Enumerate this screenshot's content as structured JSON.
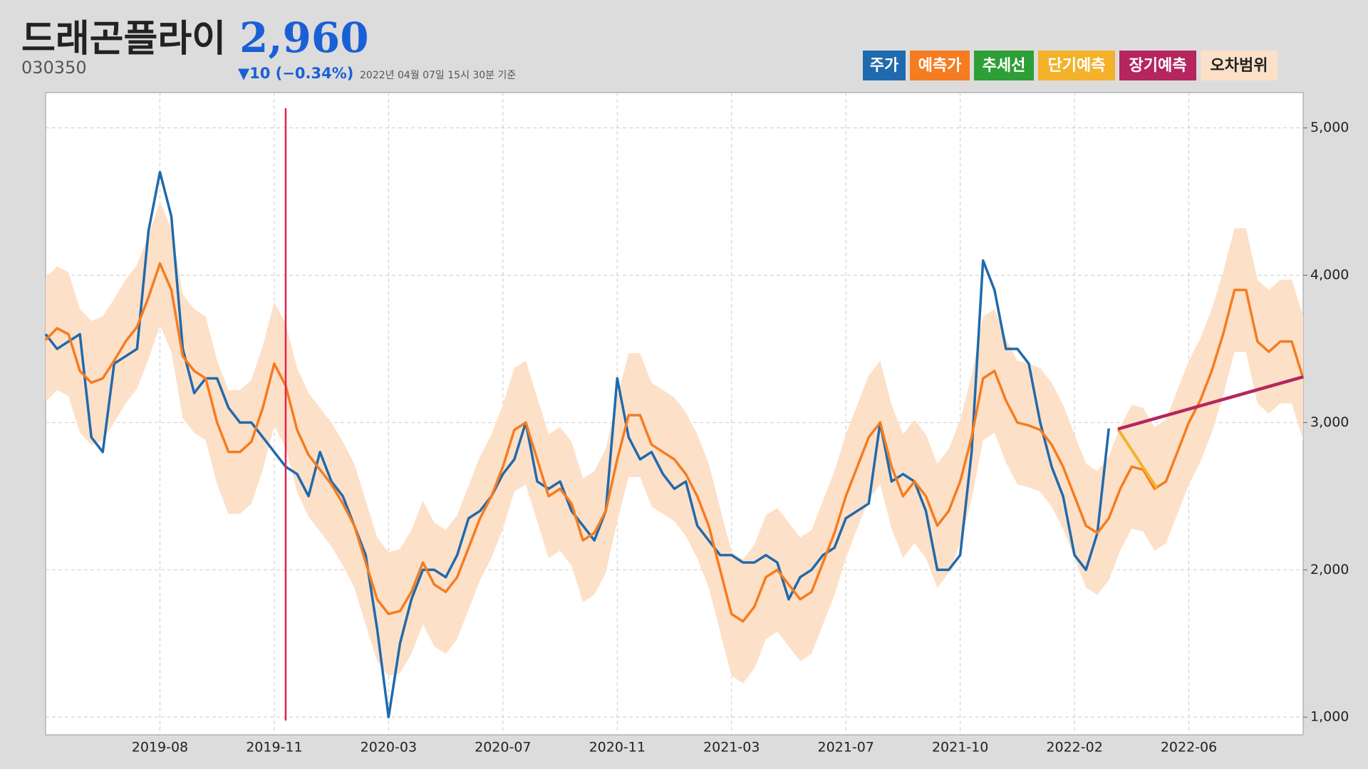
{
  "header": {
    "title": "드래곤플라이",
    "price": "2,960",
    "code": "030350",
    "change": "▼10 (−0.34%)",
    "timestamp": "2022년 04월 07일 15시 30분 기준"
  },
  "chart_data": {
    "type": "line",
    "x": [
      0,
      1,
      2,
      3,
      4,
      5,
      6,
      7,
      8,
      9,
      10,
      11,
      12,
      13,
      14,
      15,
      16,
      17,
      18,
      19,
      20,
      21,
      22,
      23,
      24,
      25,
      26,
      27,
      28,
      29,
      30,
      31,
      32,
      33,
      34,
      35,
      36,
      37,
      38,
      39,
      40,
      41,
      42,
      43,
      44,
      45,
      46,
      47,
      48,
      49,
      50,
      51,
      52,
      53,
      54,
      55,
      56,
      57,
      58,
      59,
      60,
      61,
      62,
      63,
      64,
      65,
      66,
      67,
      68,
      69,
      70,
      71,
      72,
      73,
      74,
      75,
      76,
      77,
      78,
      79,
      80,
      81,
      82,
      83,
      84,
      85,
      86,
      87,
      88,
      89,
      90,
      91,
      92,
      93,
      94,
      95,
      96,
      97,
      98,
      99,
      100,
      101,
      102,
      103,
      104,
      105,
      106,
      107,
      108,
      109,
      110
    ],
    "xlim": [
      0,
      110
    ],
    "xticks": [
      {
        "value": 10,
        "label": "2019-08"
      },
      {
        "value": 20,
        "label": "2019-11"
      },
      {
        "value": 30,
        "label": "2020-03"
      },
      {
        "value": 40,
        "label": "2020-07"
      },
      {
        "value": 50,
        "label": "2020-11"
      },
      {
        "value": 60,
        "label": "2021-03"
      },
      {
        "value": 70,
        "label": "2021-07"
      },
      {
        "value": 80,
        "label": "2021-10"
      },
      {
        "value": 90,
        "label": "2022-02"
      },
      {
        "value": 100,
        "label": "2022-06"
      }
    ],
    "ylim": [
      880,
      5240
    ],
    "yticks": [
      {
        "value": 1000,
        "label": "1,000"
      },
      {
        "value": 2000,
        "label": "2,000"
      },
      {
        "value": 3000,
        "label": "3,000"
      },
      {
        "value": 4000,
        "label": "4,000"
      },
      {
        "value": 5000,
        "label": "5,000"
      }
    ],
    "grid": true,
    "marker_x": 21,
    "series": [
      {
        "name": "주가",
        "color": "#1f6aad",
        "values": [
          3600,
          3500,
          3550,
          3600,
          2900,
          2800,
          3400,
          3450,
          3500,
          4300,
          4700,
          4400,
          3500,
          3200,
          3300,
          3300,
          3100,
          3000,
          3000,
          2900,
          2800,
          2700,
          2650,
          2500,
          2800,
          2600,
          2500,
          2300,
          2100,
          1600,
          1000,
          1500,
          1800,
          2000,
          2000,
          1950,
          2100,
          2350,
          2400,
          2500,
          2650,
          2750,
          3000,
          2600,
          2550,
          2600,
          2400,
          2300,
          2200,
          2400,
          3300,
          2900,
          2750,
          2800,
          2650,
          2550,
          2600,
          2300,
          2200,
          2100,
          2100,
          2050,
          2050,
          2100,
          2050,
          1800,
          1950,
          2000,
          2100,
          2150,
          2350,
          2400,
          2450,
          3000,
          2600,
          2650,
          2600,
          2400,
          2000,
          2000,
          2100,
          2800,
          4100,
          3900,
          3500,
          3500,
          3400,
          3000,
          2700,
          2500,
          2100,
          2000,
          2250,
          2960,
          null,
          null,
          null,
          null,
          null,
          null,
          null,
          null,
          null,
          null,
          null,
          null,
          null,
          null,
          null,
          null,
          null
        ]
      },
      {
        "name": "예측가",
        "color": "#f57c20",
        "values": [
          3560,
          3640,
          3600,
          3350,
          3270,
          3300,
          3420,
          3550,
          3650,
          3850,
          4080,
          3900,
          3450,
          3350,
          3300,
          3000,
          2800,
          2800,
          2870,
          3100,
          3400,
          3250,
          2950,
          2780,
          2680,
          2580,
          2450,
          2300,
          2050,
          1800,
          1700,
          1720,
          1850,
          2050,
          1900,
          1850,
          1950,
          2150,
          2350,
          2500,
          2700,
          2950,
          3000,
          2750,
          2500,
          2550,
          2450,
          2200,
          2250,
          2400,
          2750,
          3050,
          3050,
          2850,
          2800,
          2750,
          2650,
          2500,
          2300,
          2000,
          1700,
          1650,
          1750,
          1950,
          2000,
          1900,
          1800,
          1850,
          2050,
          2250,
          2500,
          2700,
          2900,
          3000,
          2700,
          2500,
          2600,
          2500,
          2300,
          2400,
          2600,
          2900,
          3300,
          3350,
          3150,
          3000,
          2980,
          2950,
          2850,
          2700,
          2500,
          2300,
          2250,
          2350,
          2550,
          2700,
          2680,
          2550,
          2600,
          2800,
          3000,
          3150,
          3350,
          3600,
          3900,
          3900,
          3550,
          3480,
          3550,
          3550,
          3300
        ]
      },
      {
        "name": "추세선",
        "color": "#2e9e36",
        "x": [],
        "values": []
      },
      {
        "name": "단기예측",
        "color": "#f3b22a",
        "x": [
          93.8,
          97.2
        ],
        "values": [
          2956,
          2554
        ]
      },
      {
        "name": "장기예측",
        "color": "#b5265e",
        "x": [
          93.8,
          110
        ],
        "values": [
          2956,
          3310
        ]
      },
      {
        "name": "오차범위",
        "color": "#fde0c8",
        "error": 420
      }
    ]
  }
}
